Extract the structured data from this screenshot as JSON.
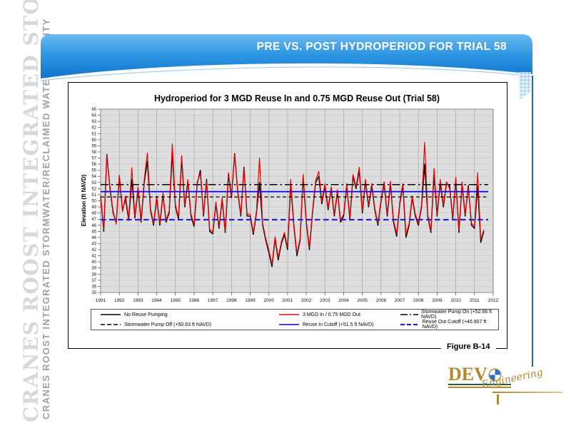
{
  "sidebar": {
    "large": "CRANES ROOST INTEGRATED STORMWATER",
    "small": "CRANES ROOST INTEGRATED STORMWATER/RECLAIMED WATER FACILITY"
  },
  "header": {
    "title": "PRE VS. POST HYDROPERIOD FOR TRIAL 58",
    "band_color_top": "#6cb9f0",
    "band_color_mid": "#2f97e2",
    "band_color_bottom": "#0e76cc"
  },
  "figure_label": "Figure B-14",
  "logo": {
    "prefix": "DEV",
    "script": "Engineering",
    "gold": "#b08830",
    "green": "#23613c",
    "blue": "#2a6fc2"
  },
  "chart_data": {
    "type": "line",
    "title": "Hydroperiod for 3 MGD Reuse In and 0.75 MGD Reuse Out (Trial 58)",
    "xlabel": "",
    "ylabel": "Elevation (ft NAVD)",
    "ylim": [
      35,
      65
    ],
    "xlim": [
      1991,
      2012
    ],
    "y_tick_step": 1,
    "x_ticks": [
      1991,
      1992,
      1993,
      1994,
      1995,
      1996,
      1997,
      1998,
      1999,
      2000,
      2001,
      2002,
      2003,
      2004,
      2005,
      2006,
      2007,
      2008,
      2009,
      2010,
      2011,
      2012
    ],
    "grid": true,
    "plot_bg": "#dedede",
    "legend_position": "bottom",
    "reference_lines": [
      {
        "label": "Stormwater Pump On (+52.66 ft NAVD)",
        "value": 52.66,
        "color": "#000000",
        "style": "dashdot"
      },
      {
        "label": "Stormwater Pump Off (+50.63 ft NAVD)",
        "value": 50.63,
        "color": "#000000",
        "style": "dashed"
      },
      {
        "label": "Reuse In Cutoff (+51.5 ft NAVD)",
        "value": 51.5,
        "color": "#0000ee",
        "style": "solid"
      },
      {
        "label": "Reuse Out Cutoff (+46.907 ft NAVD)",
        "value": 46.907,
        "color": "#2222dd",
        "style": "dashed"
      }
    ],
    "series": [
      {
        "name": "No Reuse Pumping",
        "color": "#000000",
        "x_start": 1991,
        "x_step_years": 0.16667,
        "values": [
          50.8,
          45.0,
          57.6,
          52.0,
          48.0,
          46.4,
          54.0,
          48.5,
          50.3,
          46.8,
          53.5,
          47.2,
          52.0,
          46.5,
          53.0,
          56.5,
          48.5,
          46.0,
          50.5,
          46.0,
          51.0,
          46.5,
          48.0,
          57.8,
          49.0,
          47.0,
          56.9,
          49.0,
          53.2,
          47.5,
          45.8,
          52.8,
          55.0,
          47.5,
          53.5,
          45.0,
          44.6,
          49.5,
          45.5,
          50.2,
          44.8,
          54.3,
          50.5,
          57.7,
          51.5,
          47.5,
          55.5,
          47.5,
          47.5,
          44.5,
          48.0,
          53.0,
          46.0,
          43.5,
          41.5,
          39.2,
          43.8,
          40.3,
          43.0,
          44.5,
          42.0,
          52.8,
          46.0,
          41.0,
          43.5,
          54.0,
          46.5,
          42.0,
          48.0,
          53.0,
          54.0,
          49.5,
          52.5,
          48.5,
          52.0,
          47.5,
          51.5,
          46.5,
          47.5,
          52.5,
          47.0,
          54.0,
          52.0,
          55.0,
          48.0,
          53.2,
          49.0,
          52.5,
          48.5,
          46.0,
          50.0,
          52.8,
          47.5,
          52.9,
          46.5,
          44.2,
          49.5,
          52.5,
          44.0,
          46.0,
          50.5,
          47.5,
          46.0,
          49.0,
          56.0,
          47.5,
          44.8,
          54.5,
          47.5,
          53.0,
          49.0,
          52.8,
          52.5,
          47.0,
          53.5,
          44.8,
          52.8,
          47.5,
          52.5,
          46.0,
          45.5,
          52.5,
          43.2,
          45.0
        ]
      },
      {
        "name": "3 MGD In / 0.75 MGD Out",
        "color": "#ee0000",
        "x_start": 1991,
        "x_step_years": 0.16667,
        "values": [
          50.9,
          45.3,
          57.4,
          52.3,
          48.3,
          46.2,
          54.2,
          48.2,
          50.8,
          47.1,
          55.4,
          47.5,
          52.3,
          46.8,
          53.5,
          57.8,
          48.8,
          46.3,
          50.8,
          46.3,
          51.3,
          46.8,
          48.3,
          59.3,
          49.3,
          47.3,
          57.4,
          49.3,
          53.5,
          47.8,
          46.1,
          53.1,
          54.5,
          47.8,
          53.2,
          45.3,
          44.9,
          49.8,
          45.8,
          50.5,
          45.1,
          54.6,
          50.8,
          57.5,
          51.8,
          47.8,
          55.2,
          47.8,
          47.8,
          44.8,
          48.3,
          57.0,
          46.3,
          43.8,
          41.9,
          39.6,
          44.1,
          40.7,
          43.3,
          44.8,
          42.4,
          53.5,
          46.3,
          41.4,
          43.8,
          54.3,
          46.8,
          42.4,
          48.3,
          53.3,
          54.8,
          49.8,
          52.8,
          48.8,
          52.3,
          47.8,
          51.8,
          46.8,
          47.8,
          52.8,
          47.3,
          54.3,
          52.3,
          55.5,
          48.3,
          53.5,
          49.3,
          52.8,
          48.8,
          46.3,
          50.3,
          53.1,
          47.8,
          53.2,
          46.8,
          44.6,
          49.8,
          52.8,
          44.5,
          46.3,
          50.8,
          47.8,
          46.3,
          49.3,
          59.6,
          47.8,
          45.1,
          55.3,
          47.8,
          53.5,
          49.3,
          53.1,
          52.0,
          47.3,
          53.8,
          45.2,
          53.1,
          47.8,
          52.1,
          46.3,
          45.8,
          54.6,
          43.6,
          45.3
        ]
      }
    ],
    "legend_entries": [
      {
        "label": "No Reuse Pumping",
        "color": "#000000",
        "style": "solid"
      },
      {
        "label": "3 MGD In / 0.75 MGD Out",
        "color": "#ee0000",
        "style": "solid"
      },
      {
        "label": "Stormwater Pump On (+52.66 ft NAVD)",
        "color": "#000000",
        "style": "dashdot"
      },
      {
        "label": "Stormwater Pump Off (+50.63 ft NAVD)",
        "color": "#000000",
        "style": "dashed"
      },
      {
        "label": "Reuse In Cutoff (+51.5 ft NAVD)",
        "color": "#0000ee",
        "style": "solid"
      },
      {
        "label": "Reuse Out Cutoff (+46.907 ft NAVD)",
        "color": "#2222dd",
        "style": "dashed"
      }
    ]
  }
}
